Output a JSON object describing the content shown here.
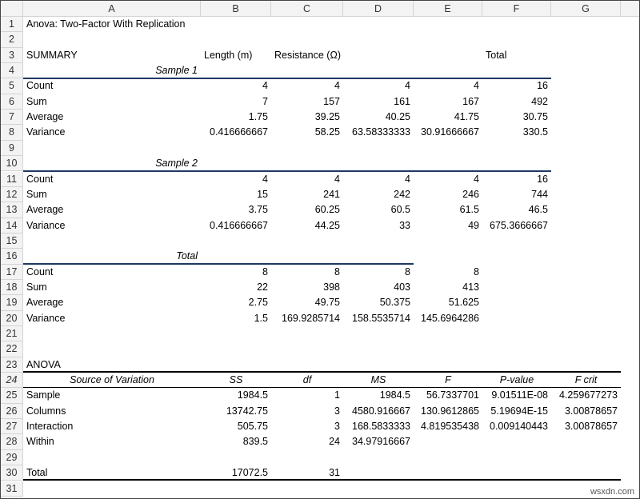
{
  "columns": [
    "A",
    "B",
    "C",
    "D",
    "E",
    "F",
    "G"
  ],
  "rows": [
    {
      "number": 1,
      "A": "Anova: Two-Factor With Replication"
    },
    {
      "number": 2
    },
    {
      "number": 3,
      "A": "SUMMARY",
      "B": "Length (m)",
      "C": "Resistance (Ω)",
      "F": "Total"
    },
    {
      "number": 4,
      "A": "Sample 1"
    },
    {
      "number": 5,
      "A": "Count",
      "B": "4",
      "C": "4",
      "D": "4",
      "E": "4",
      "F": "16"
    },
    {
      "number": 6,
      "A": "Sum",
      "B": "7",
      "C": "157",
      "D": "161",
      "E": "167",
      "F": "492"
    },
    {
      "number": 7,
      "A": "Average",
      "B": "1.75",
      "C": "39.25",
      "D": "40.25",
      "E": "41.75",
      "F": "30.75"
    },
    {
      "number": 8,
      "A": "Variance",
      "B": "0.416666667",
      "C": "58.25",
      "D": "63.58333333",
      "E": "30.91666667",
      "F": "330.5"
    },
    {
      "number": 9
    },
    {
      "number": 10,
      "A": "Sample 2"
    },
    {
      "number": 11,
      "A": "Count",
      "B": "4",
      "C": "4",
      "D": "4",
      "E": "4",
      "F": "16"
    },
    {
      "number": 12,
      "A": "Sum",
      "B": "15",
      "C": "241",
      "D": "242",
      "E": "246",
      "F": "744"
    },
    {
      "number": 13,
      "A": "Average",
      "B": "3.75",
      "C": "60.25",
      "D": "60.5",
      "E": "61.5",
      "F": "46.5"
    },
    {
      "number": 14,
      "A": "Variance",
      "B": "0.416666667",
      "C": "44.25",
      "D": "33",
      "E": "49",
      "F": "675.3666667"
    },
    {
      "number": 15
    },
    {
      "number": 16,
      "A": "Total"
    },
    {
      "number": 17,
      "A": "Count",
      "B": "8",
      "C": "8",
      "D": "8",
      "E": "8"
    },
    {
      "number": 18,
      "A": "Sum",
      "B": "22",
      "C": "398",
      "D": "403",
      "E": "413"
    },
    {
      "number": 19,
      "A": "Average",
      "B": "2.75",
      "C": "49.75",
      "D": "50.375",
      "E": "51.625"
    },
    {
      "number": 20,
      "A": "Variance",
      "B": "1.5",
      "C": "169.9285714",
      "D": "158.5535714",
      "E": "145.6964286"
    },
    {
      "number": 21
    },
    {
      "number": 22
    },
    {
      "number": 23,
      "A": "ANOVA"
    },
    {
      "number": 24,
      "A": "Source of Variation",
      "B": "SS",
      "C": "df",
      "D": "MS",
      "E": "F",
      "F": "P-value",
      "G": "F crit"
    },
    {
      "number": 25,
      "A": "Sample",
      "B": "1984.5",
      "C": "1",
      "D": "1984.5",
      "E": "56.7337701",
      "F": "9.01511E-08",
      "G": "4.259677273"
    },
    {
      "number": 26,
      "A": "Columns",
      "B": "13742.75",
      "C": "3",
      "D": "4580.916667",
      "E": "130.9612865",
      "F": "5.19694E-15",
      "G": "3.00878657"
    },
    {
      "number": 27,
      "A": "Interaction",
      "B": "505.75",
      "C": "3",
      "D": "168.5833333",
      "E": "4.819535438",
      "F": "0.009140443",
      "G": "3.00878657"
    },
    {
      "number": 28,
      "A": "Within",
      "B": "839.5",
      "C": "24",
      "D": "34.97916667"
    },
    {
      "number": 29
    },
    {
      "number": 30,
      "A": "Total",
      "B": "17072.5",
      "C": "31"
    },
    {
      "number": 31
    }
  ],
  "watermark": "wsxdn.com"
}
